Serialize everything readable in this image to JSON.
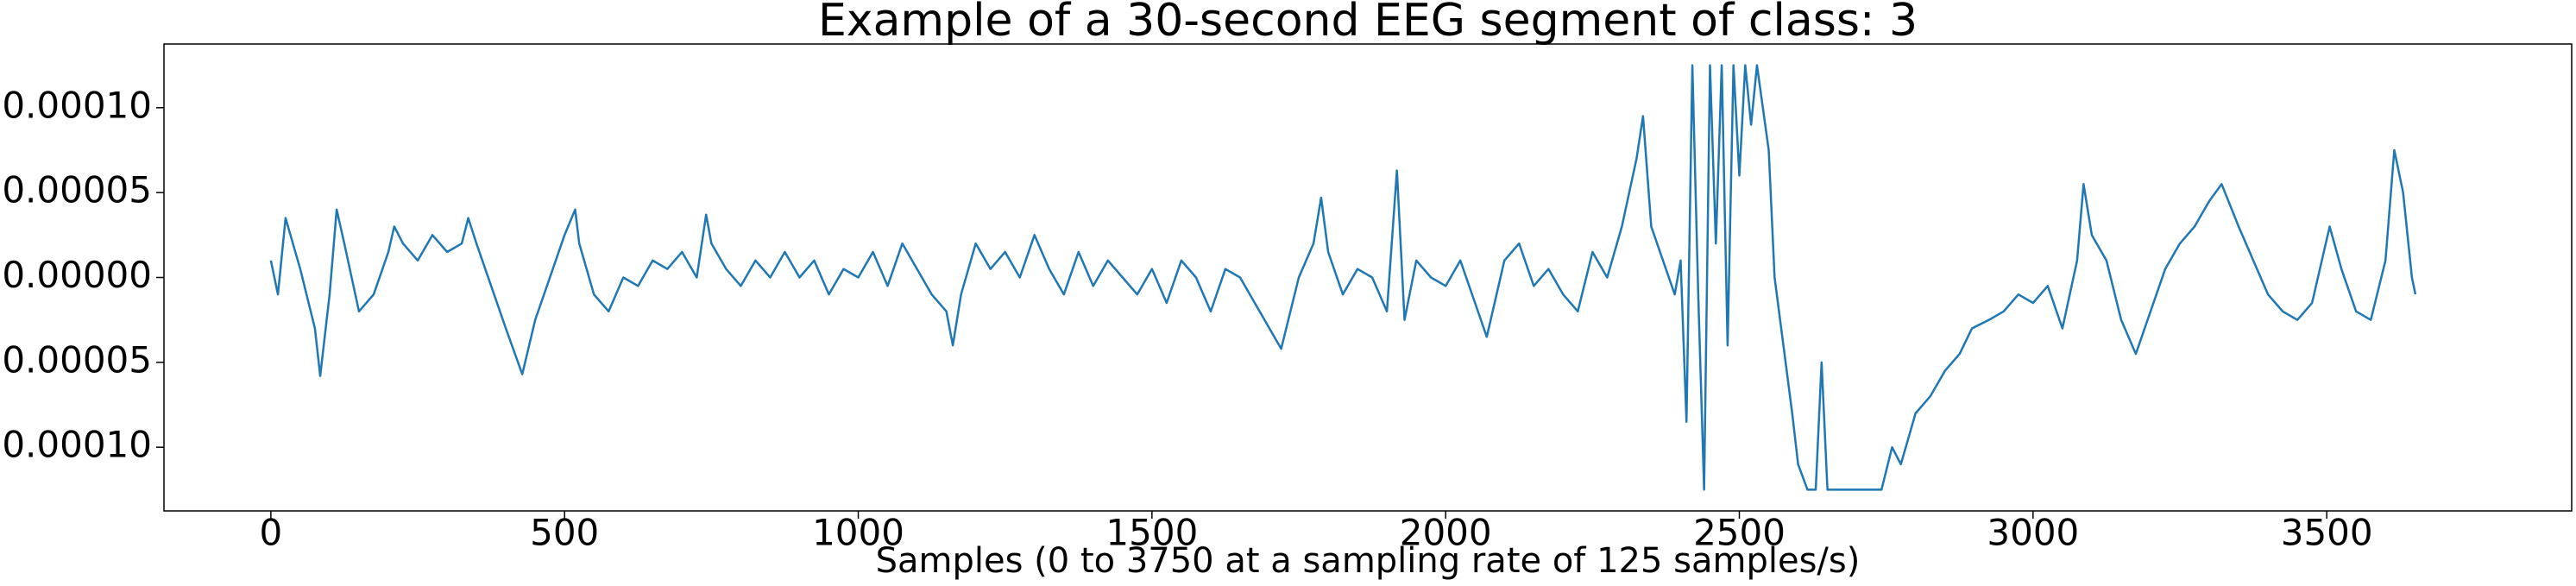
{
  "chart_data": {
    "type": "line",
    "title": "Example of a 30-second EEG segment of class: 3",
    "x_label": "Samples (0 to 3750 at a sampling rate of 125 samples/s)",
    "xlim": [
      -182,
      3917
    ],
    "ylim": [
      -0.0001375,
      0.0001375
    ],
    "xticks": [
      0,
      500,
      1000,
      1500,
      2000,
      2500,
      3000,
      3500
    ],
    "yticks": [
      {
        "value": -0.0001,
        "label": "−0.00010"
      },
      {
        "value": -5e-05,
        "label": "−0.00005"
      },
      {
        "value": 0,
        "label": "0.00000"
      },
      {
        "value": 5e-05,
        "label": "0.00005"
      },
      {
        "value": 0.0001,
        "label": "0.00010"
      }
    ],
    "series": [
      {
        "color": "#1f77b4",
        "x": [
          0,
          12,
          25,
          50,
          75,
          84,
          100,
          112,
          125,
          150,
          175,
          200,
          210,
          225,
          250,
          275,
          300,
          325,
          336,
          350,
          375,
          400,
          428,
          450,
          475,
          500,
          518,
          525,
          550,
          575,
          600,
          625,
          650,
          675,
          700,
          725,
          741,
          750,
          775,
          800,
          825,
          850,
          875,
          900,
          925,
          950,
          975,
          1000,
          1025,
          1050,
          1075,
          1100,
          1125,
          1150,
          1161,
          1175,
          1200,
          1225,
          1250,
          1275,
          1300,
          1325,
          1350,
          1375,
          1400,
          1425,
          1450,
          1475,
          1500,
          1525,
          1550,
          1575,
          1600,
          1625,
          1650,
          1675,
          1700,
          1720,
          1750,
          1775,
          1788,
          1800,
          1825,
          1850,
          1875,
          1900,
          1917,
          1930,
          1950,
          1975,
          2000,
          2025,
          2050,
          2070,
          2100,
          2125,
          2150,
          2175,
          2200,
          2225,
          2250,
          2275,
          2300,
          2325,
          2336,
          2350,
          2375,
          2390,
          2400,
          2410,
          2420,
          2430,
          2440,
          2450,
          2460,
          2470,
          2480,
          2490,
          2500,
          2510,
          2520,
          2530,
          2540,
          2550,
          2560,
          2575,
          2590,
          2600,
          2616,
          2630,
          2640,
          2650,
          2675,
          2700,
          2725,
          2742,
          2760,
          2775,
          2800,
          2825,
          2850,
          2875,
          2896,
          2925,
          2950,
          2975,
          3000,
          3025,
          3050,
          3075,
          3086,
          3100,
          3125,
          3150,
          3175,
          3200,
          3225,
          3250,
          3275,
          3300,
          3321,
          3350,
          3375,
          3400,
          3425,
          3450,
          3475,
          3505,
          3525,
          3550,
          3575,
          3600,
          3615,
          3630,
          3645,
          3651
        ],
        "values": [
          1e-05,
          -1e-05,
          3.5e-05,
          5e-06,
          -3e-05,
          -5.8e-05,
          -1e-05,
          4e-05,
          2e-05,
          -2e-05,
          -1e-05,
          1.5e-05,
          3e-05,
          2e-05,
          1e-05,
          2.5e-05,
          1.5e-05,
          2e-05,
          3.5e-05,
          2e-05,
          -5e-06,
          -3e-05,
          -5.7e-05,
          -2.5e-05,
          0,
          2.5e-05,
          4e-05,
          2e-05,
          -1e-05,
          -2e-05,
          0,
          -5e-06,
          1e-05,
          5e-06,
          1.5e-05,
          0,
          3.7e-05,
          2e-05,
          5e-06,
          -5e-06,
          1e-05,
          0,
          1.5e-05,
          0,
          1e-05,
          -1e-05,
          5e-06,
          0,
          1.5e-05,
          -5e-06,
          2e-05,
          5e-06,
          -1e-05,
          -2e-05,
          -4e-05,
          -1e-05,
          2e-05,
          5e-06,
          1.5e-05,
          0,
          2.5e-05,
          5e-06,
          -1e-05,
          1.5e-05,
          -5e-06,
          1e-05,
          0,
          -1e-05,
          5e-06,
          -1.5e-05,
          1e-05,
          0,
          -2e-05,
          5e-06,
          0,
          -1.5e-05,
          -3e-05,
          -4.2e-05,
          0,
          2e-05,
          4.7e-05,
          1.5e-05,
          -1e-05,
          5e-06,
          0,
          -2e-05,
          6.3e-05,
          -2.5e-05,
          1e-05,
          0,
          -5e-06,
          1e-05,
          -1.5e-05,
          -3.5e-05,
          1e-05,
          2e-05,
          -5e-06,
          5e-06,
          -1e-05,
          -2e-05,
          1.5e-05,
          0,
          3e-05,
          7e-05,
          9.5e-05,
          3e-05,
          5e-06,
          -1e-05,
          1e-05,
          -8.5e-05,
          0.000125,
          -1e-05,
          -0.000125,
          0.000125,
          2e-05,
          0.000125,
          -4e-05,
          0.000125,
          6e-05,
          0.000125,
          9e-05,
          0.000125,
          0.0001,
          7.5e-05,
          0,
          -4e-05,
          -8e-05,
          -0.00011,
          -0.000125,
          -0.000125,
          -5e-05,
          -0.000125,
          -0.000125,
          -0.000125,
          -0.000125,
          -0.000125,
          -0.0001,
          -0.00011,
          -8e-05,
          -7e-05,
          -5.5e-05,
          -4.5e-05,
          -3e-05,
          -2.5e-05,
          -2e-05,
          -1e-05,
          -1.5e-05,
          -5e-06,
          -3e-05,
          1e-05,
          5.5e-05,
          2.5e-05,
          1e-05,
          -2.5e-05,
          -4.5e-05,
          -2e-05,
          5e-06,
          2e-05,
          3e-05,
          4.5e-05,
          5.5e-05,
          3e-05,
          1e-05,
          -1e-05,
          -2e-05,
          -2.5e-05,
          -1.5e-05,
          3e-05,
          5e-06,
          -2e-05,
          -2.5e-05,
          1e-05,
          7.5e-05,
          5e-05,
          0,
          -1e-05
        ]
      }
    ]
  }
}
